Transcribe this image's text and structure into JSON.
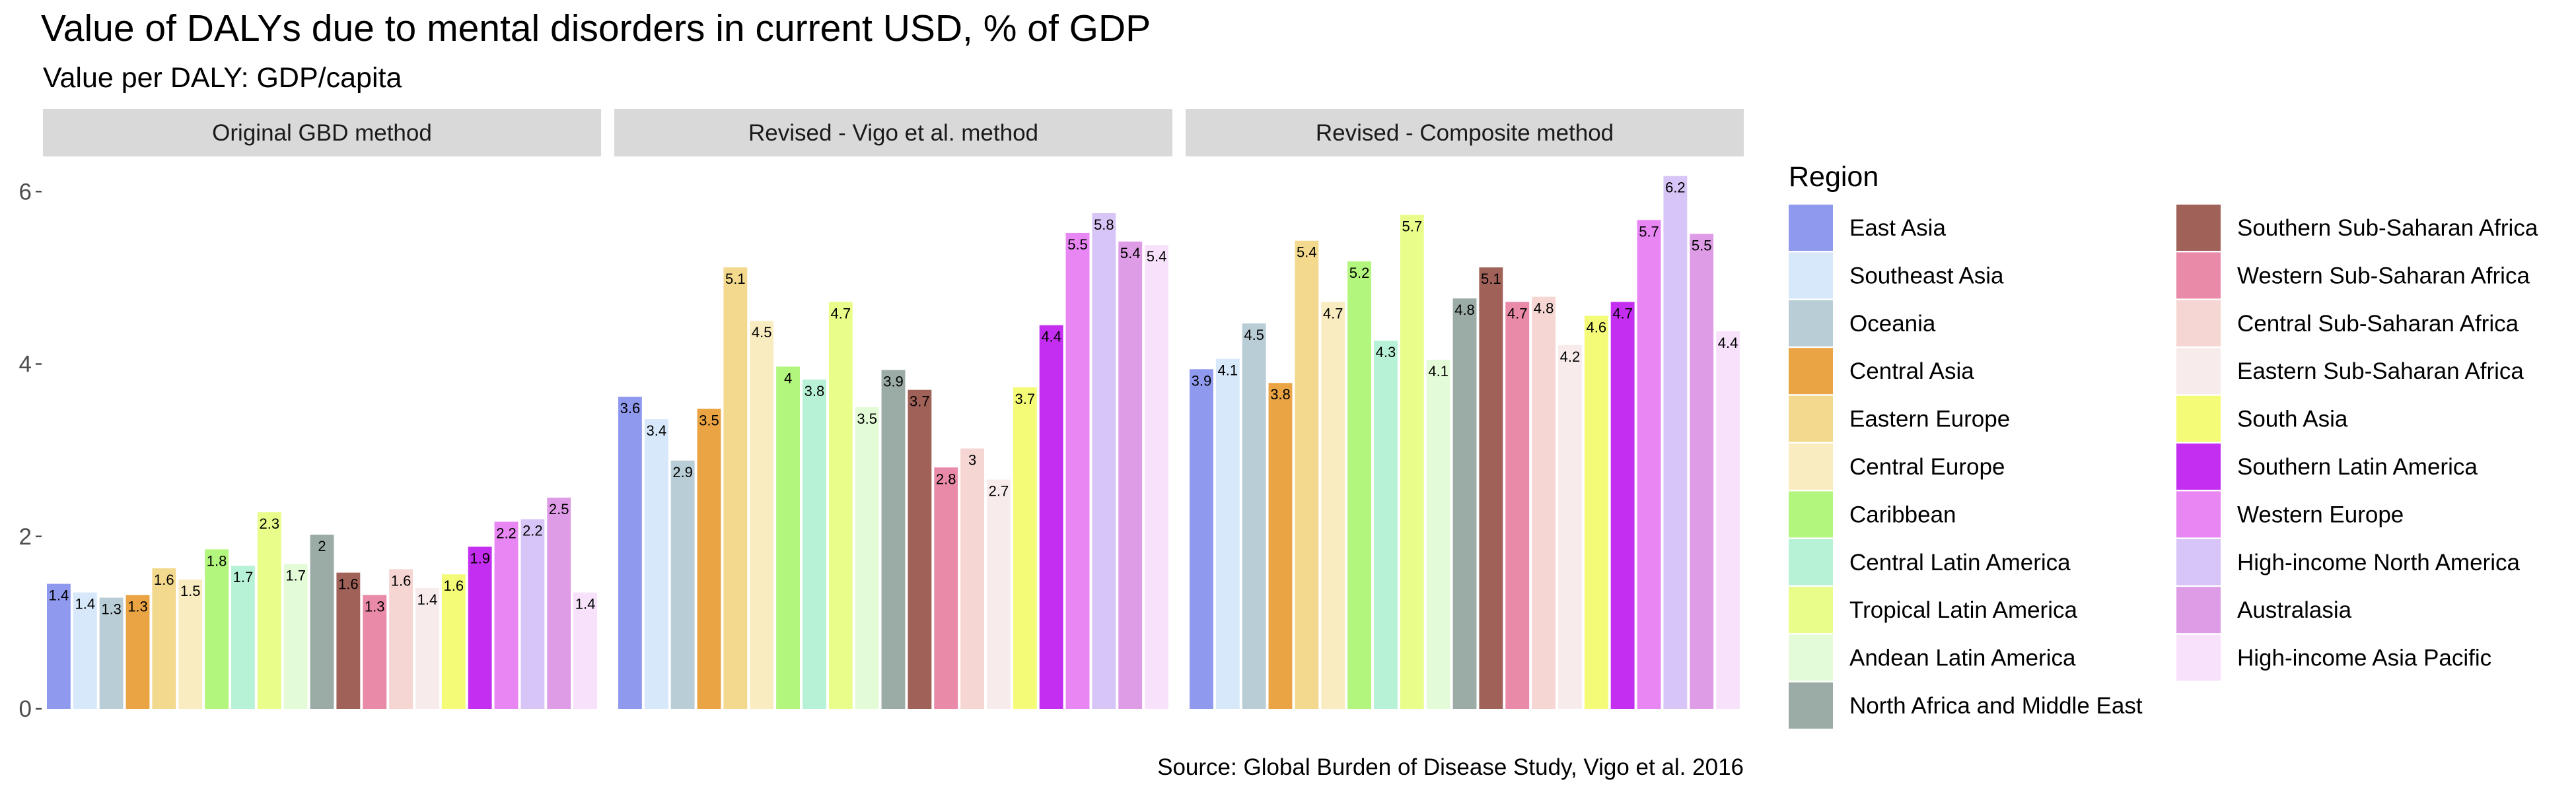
{
  "chart_data": {
    "type": "bar",
    "title": "Value of DALYs due to mental disorders in current USD, % of GDP",
    "subtitle": "Value per DALY: GDP/capita",
    "caption": "Source: Global Burden of Disease Study, Vigo et al. 2016",
    "xlabel": "",
    "ylabel": "",
    "ylim": [
      0,
      6.4
    ],
    "y_ticks": [
      0,
      2,
      4,
      6
    ],
    "legend_title": "Region",
    "legend_position": "right",
    "categories": [
      "East Asia",
      "Southeast Asia",
      "Oceania",
      "Central Asia",
      "Eastern Europe",
      "Central Europe",
      "Caribbean",
      "Central Latin America",
      "Tropical Latin America",
      "Andean Latin America",
      "North Africa and Middle East",
      "Southern Sub-Saharan Africa",
      "Western Sub-Saharan Africa",
      "Central Sub-Saharan Africa",
      "Eastern Sub-Saharan Africa",
      "South Asia",
      "Southern Latin America",
      "Western Europe",
      "High-income North America",
      "Australasia",
      "High-income Asia Pacific"
    ],
    "colors": [
      "#8f99ee",
      "#d6e8fa",
      "#b9cdd6",
      "#eba444",
      "#f3d98d",
      "#faecc1",
      "#b2f67d",
      "#b8f2d6",
      "#e8fd8a",
      "#e4fbd8",
      "#9aaca5",
      "#a06158",
      "#e88aa8",
      "#f6d6d3",
      "#f8ebec",
      "#f4fc77",
      "#c42ef0",
      "#e886f3",
      "#d8c5f7",
      "#de9ce6",
      "#f8e2fb"
    ],
    "facets": [
      {
        "label": "Original GBD method",
        "values": [
          1.4,
          1.4,
          1.3,
          1.3,
          1.6,
          1.5,
          1.8,
          1.7,
          2.3,
          1.7,
          2,
          1.6,
          1.3,
          1.6,
          1.4,
          1.6,
          1.9,
          2.2,
          2.2,
          2.5,
          1.4
        ],
        "heights": [
          1.45,
          1.35,
          1.29,
          1.32,
          1.63,
          1.5,
          1.85,
          1.66,
          2.28,
          1.68,
          2.02,
          1.58,
          1.32,
          1.62,
          1.4,
          1.56,
          1.88,
          2.17,
          2.2,
          2.45,
          1.35
        ]
      },
      {
        "label": "Revised - Vigo et al. method",
        "values": [
          3.6,
          3.4,
          2.9,
          3.5,
          5.1,
          4.5,
          4,
          3.8,
          4.7,
          3.5,
          3.9,
          3.7,
          2.8,
          3,
          2.7,
          3.7,
          4.4,
          5.5,
          5.8,
          5.4,
          5.4
        ],
        "heights": [
          3.62,
          3.36,
          2.88,
          3.48,
          5.12,
          4.5,
          3.97,
          3.82,
          4.72,
          3.5,
          3.93,
          3.7,
          2.8,
          3.02,
          2.66,
          3.73,
          4.45,
          5.52,
          5.75,
          5.42,
          5.38
        ]
      },
      {
        "label": "Revised - Composite method",
        "values": [
          3.9,
          4.1,
          4.5,
          3.8,
          5.4,
          4.7,
          5.2,
          4.3,
          5.7,
          4.1,
          4.8,
          5.1,
          4.7,
          4.8,
          4.2,
          4.6,
          4.7,
          5.7,
          6.2,
          5.5,
          4.4
        ],
        "heights": [
          3.94,
          4.06,
          4.47,
          3.78,
          5.43,
          4.72,
          5.19,
          4.27,
          5.73,
          4.05,
          4.76,
          5.12,
          4.72,
          4.78,
          4.22,
          4.56,
          4.72,
          5.67,
          6.18,
          5.51,
          4.38
        ]
      }
    ]
  }
}
